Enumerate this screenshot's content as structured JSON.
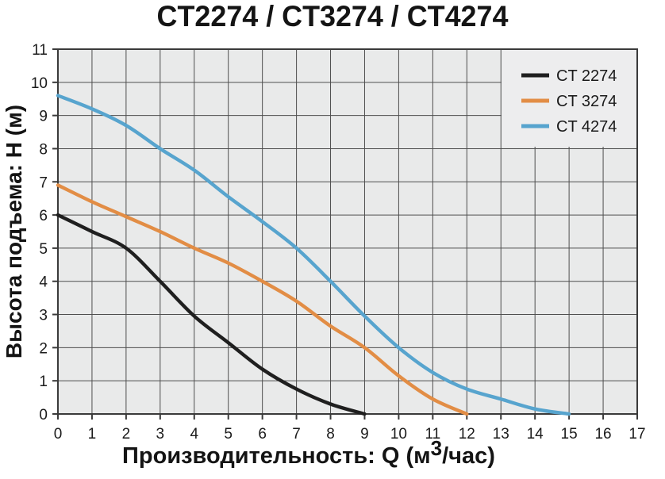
{
  "title": "CT2274 / CT3274 / CT4274",
  "y_axis": {
    "label": "Высота подъема: H (м)",
    "ticks": [
      "0",
      "1",
      "2",
      "3",
      "4",
      "5",
      "6",
      "7",
      "8",
      "9",
      "10",
      "11"
    ]
  },
  "x_axis": {
    "label_prefix": "Производительность: Q (м",
    "label_sup": "3",
    "label_suffix": "/час)",
    "ticks": [
      "0",
      "1",
      "2",
      "3",
      "4",
      "5",
      "6",
      "7",
      "8",
      "9",
      "10",
      "11",
      "12",
      "13",
      "14",
      "15",
      "16",
      "17"
    ]
  },
  "legend": {
    "entries": [
      {
        "label": "CT 2274",
        "color": "#1f1f1f"
      },
      {
        "label": "CT 3274",
        "color": "#e28d45"
      },
      {
        "label": "CT 4274",
        "color": "#57a4ce"
      }
    ]
  },
  "chart_data": {
    "type": "line",
    "title": "CT2274 / CT3274 / CT4274",
    "xlabel": "Производительность: Q (м3/час)",
    "ylabel": "Высота подъема: H (м)",
    "xlim": [
      0,
      17
    ],
    "ylim": [
      0,
      11
    ],
    "grid": true,
    "legend_position": "top-right",
    "series": [
      {
        "name": "CT 2274",
        "color": "#1f1f1f",
        "points": [
          [
            0,
            6.0
          ],
          [
            1,
            5.5
          ],
          [
            2,
            5.0
          ],
          [
            3,
            4.0
          ],
          [
            4,
            2.95
          ],
          [
            5,
            2.15
          ],
          [
            6,
            1.35
          ],
          [
            7,
            0.75
          ],
          [
            8,
            0.3
          ],
          [
            9,
            0.0
          ]
        ]
      },
      {
        "name": "CT 3274",
        "color": "#e28d45",
        "points": [
          [
            0,
            6.9
          ],
          [
            1,
            6.4
          ],
          [
            2,
            5.95
          ],
          [
            3,
            5.5
          ],
          [
            4,
            5.0
          ],
          [
            5,
            4.55
          ],
          [
            6,
            4.0
          ],
          [
            7,
            3.4
          ],
          [
            8,
            2.65
          ],
          [
            9,
            2.0
          ],
          [
            10,
            1.15
          ],
          [
            11,
            0.45
          ],
          [
            12,
            0.0
          ]
        ]
      },
      {
        "name": "CT 4274",
        "color": "#57a4ce",
        "points": [
          [
            0,
            9.6
          ],
          [
            1,
            9.2
          ],
          [
            2,
            8.7
          ],
          [
            3,
            8.0
          ],
          [
            4,
            7.35
          ],
          [
            5,
            6.55
          ],
          [
            6,
            5.8
          ],
          [
            7,
            5.0
          ],
          [
            8,
            4.0
          ],
          [
            9,
            2.95
          ],
          [
            10,
            2.0
          ],
          [
            11,
            1.25
          ],
          [
            12,
            0.75
          ],
          [
            13,
            0.45
          ],
          [
            14,
            0.15
          ],
          [
            15,
            0.0
          ]
        ]
      }
    ]
  },
  "colors": {
    "page_bg": "#ffffff",
    "plot_bg": "#e9eaea",
    "legend_bg": "#ededee",
    "grid": "#4e4e4e",
    "spine": "#3a3a3a",
    "tick_text": "#1b1b1b",
    "label_text": "#141414"
  }
}
